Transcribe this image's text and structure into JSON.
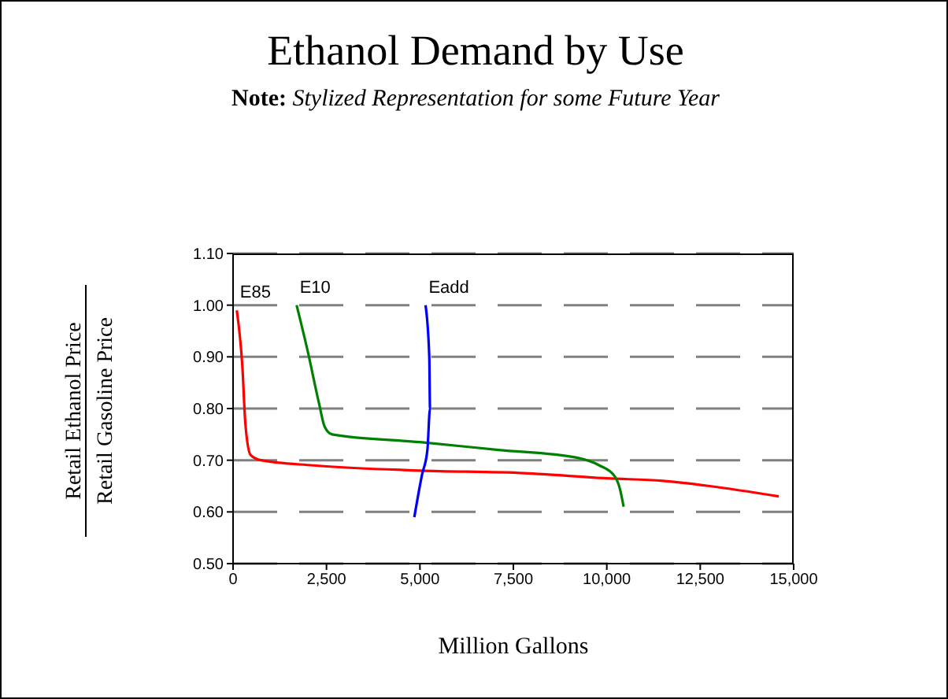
{
  "chart_data": {
    "type": "line",
    "title": "Ethanol Demand by Use",
    "subtitle": "Note: Stylized Representation for some Future Year",
    "xlabel": "Million Gallons",
    "ylabel": "Retail Ethanol Price\nRetail Gasoline Price",
    "series": [
      {
        "name": "E85",
        "color": "#ff0000",
        "x": [
          100,
          250,
          330,
          470,
          750,
          2150,
          5000,
          7800,
          10000,
          11500,
          12750,
          14600
        ],
        "values": [
          0.99,
          0.88,
          0.77,
          0.71,
          0.7,
          0.69,
          0.68,
          0.675,
          0.665,
          0.66,
          0.65,
          0.63
        ]
      },
      {
        "name": "E10",
        "color": "#008000",
        "x": [
          1700,
          2000,
          2300,
          2450,
          2650,
          5000,
          7100,
          9200,
          9800,
          10200,
          10350,
          10450
        ],
        "values": [
          1.0,
          0.91,
          0.81,
          0.765,
          0.75,
          0.735,
          0.72,
          0.705,
          0.69,
          0.67,
          0.645,
          0.61
        ]
      },
      {
        "name": "Eadd",
        "color": "#0000ff",
        "x": [
          5150,
          5250,
          5270,
          5200,
          5050,
          4850
        ],
        "values": [
          1.0,
          0.9,
          0.8,
          0.72,
          0.67,
          0.59
        ]
      }
    ],
    "xlim": [
      0,
      15000
    ],
    "xticks": [
      0,
      {
        "value": 2500,
        "label": "2,500"
      },
      {
        "value": 5000,
        "label": "5,000"
      },
      {
        "value": 7500,
        "label": "7,500"
      },
      {
        "value": 10000,
        "label": "10,000"
      },
      {
        "value": 12500,
        "label": "12,500"
      },
      {
        "value": 15000,
        "label": "15,000"
      }
    ],
    "ylim": [
      0.5,
      1.1
    ],
    "yticks": [
      {
        "value": 0.5,
        "label": "0.50"
      },
      {
        "value": 0.6,
        "label": "0.60"
      },
      {
        "value": 0.7,
        "label": "0.70"
      },
      {
        "value": 0.8,
        "label": "0.80"
      },
      {
        "value": 0.9,
        "label": "0.90"
      },
      {
        "value": 1.0,
        "label": "1.00"
      },
      {
        "value": 1.1,
        "label": "1.10"
      }
    ],
    "grid": "y",
    "marker": "none",
    "line_style": "solid"
  }
}
